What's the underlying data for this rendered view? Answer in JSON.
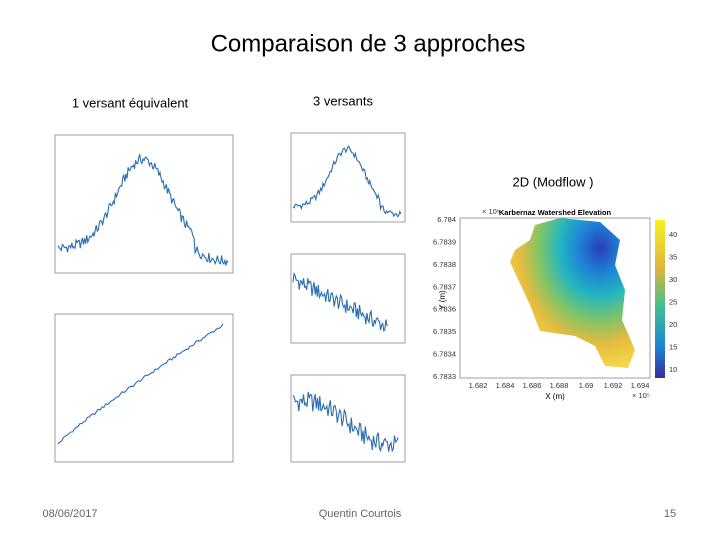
{
  "title": "Comparaison de 3 approches",
  "panels": {
    "left": "1 versant équivalent",
    "middle": "3 versants",
    "right": "2D (Modflow )"
  },
  "map": {
    "title": "Karbernaz Watershed Elevation",
    "xlabel": "X (m)",
    "ylabel": "Y (m)",
    "yexp": "× 10⁶",
    "xexp": "× 10⁵",
    "yticks": [
      "6.784",
      "6.7839",
      "6.7838",
      "6.7837",
      "6.7836",
      "6.7835",
      "6.7834",
      "6.7833"
    ],
    "xticks": [
      "1.682",
      "1.684",
      "1.686",
      "1.688",
      "1.69",
      "1.692",
      "1.694"
    ],
    "colorbar": [
      "40",
      "35",
      "30",
      "25",
      "20",
      "15",
      "10"
    ]
  },
  "footer": {
    "date": "08/06/2017",
    "author": "Quentin Courtois",
    "page": "15"
  }
}
